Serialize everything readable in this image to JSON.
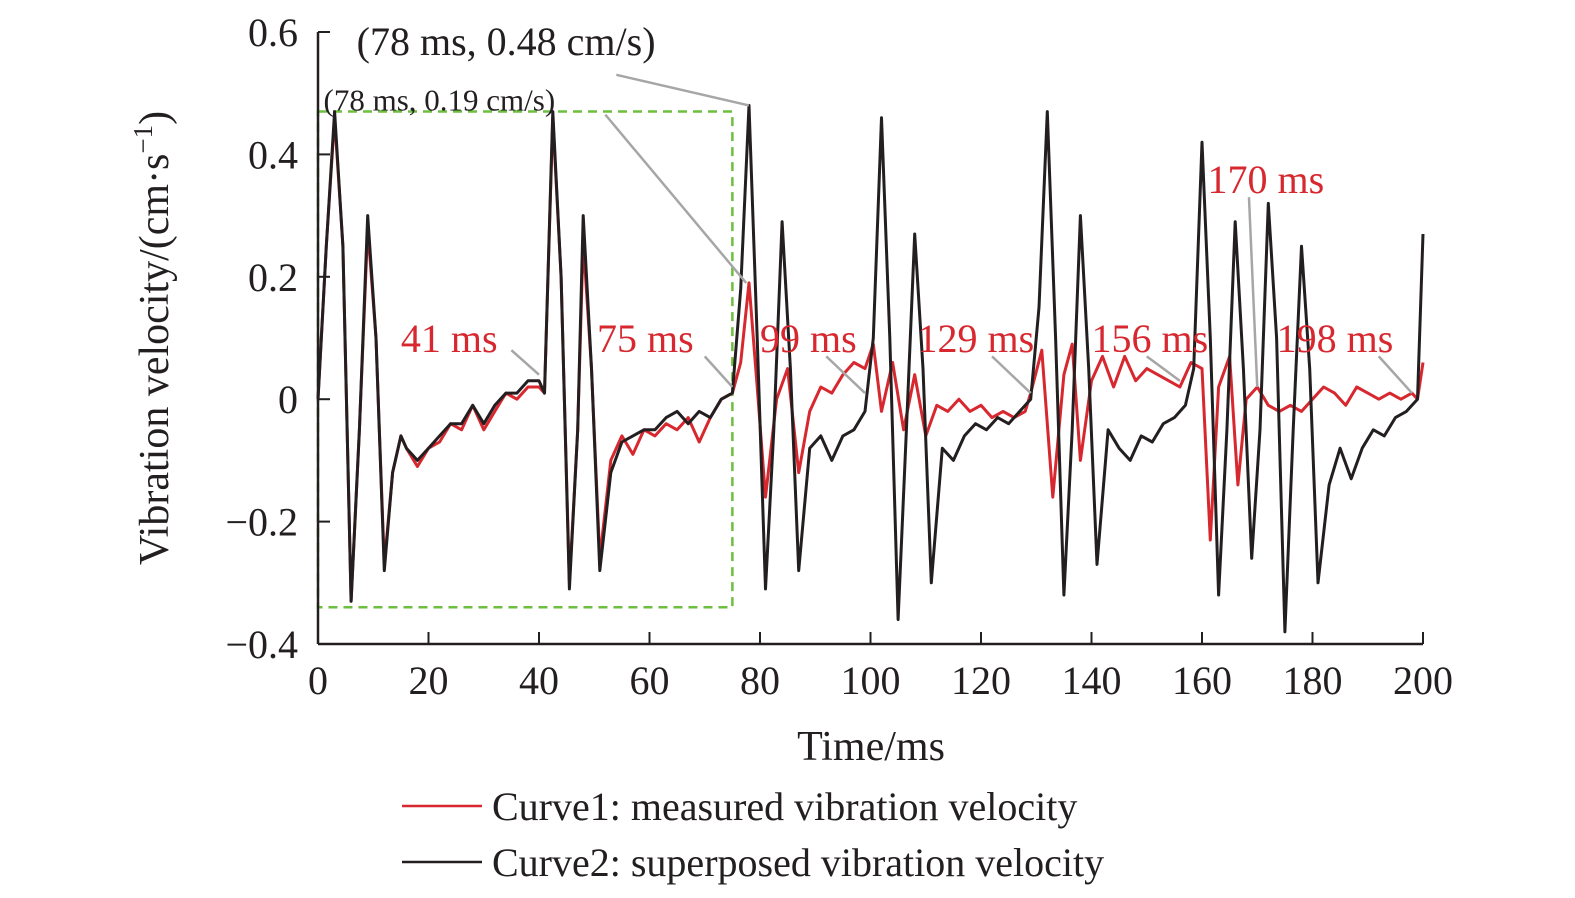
{
  "chart_data": {
    "type": "line",
    "xlabel": "Time/ms",
    "ylabel": "Vibration velocity/(cm·s",
    "ylabel_sup": "−1",
    "ylabel_close": ")",
    "xlim": [
      0,
      200
    ],
    "ylim": [
      -0.4,
      0.6
    ],
    "xticks": [
      "0",
      "20",
      "40",
      "60",
      "80",
      "100",
      "120",
      "140",
      "160",
      "180",
      "200"
    ],
    "yticks": [
      "−0.4",
      "−0.2",
      "0",
      "0.2",
      "0.4",
      "0.6"
    ],
    "grid": false,
    "legend_position": "bottom",
    "series": [
      {
        "name": "Curve1: measured vibration velocity",
        "color": "#d7282f",
        "points": [
          [
            0,
            0
          ],
          [
            1.5,
            0.25
          ],
          [
            3,
            0.46
          ],
          [
            4.5,
            0.25
          ],
          [
            6,
            -0.33
          ],
          [
            7.5,
            -0.05
          ],
          [
            9,
            0.28
          ],
          [
            10.5,
            0.1
          ],
          [
            12,
            -0.27
          ],
          [
            13.5,
            -0.12
          ],
          [
            15,
            -0.06
          ],
          [
            16,
            -0.08
          ],
          [
            18,
            -0.11
          ],
          [
            20,
            -0.08
          ],
          [
            22,
            -0.07
          ],
          [
            24,
            -0.04
          ],
          [
            26,
            -0.05
          ],
          [
            28,
            -0.01
          ],
          [
            30,
            -0.05
          ],
          [
            32,
            -0.02
          ],
          [
            34,
            0.01
          ],
          [
            36,
            0.0
          ],
          [
            38,
            0.02
          ],
          [
            40,
            0.02
          ],
          [
            41,
            0.01
          ],
          [
            42.5,
            0.46
          ],
          [
            44,
            0.2
          ],
          [
            45.5,
            -0.3
          ],
          [
            47,
            -0.05
          ],
          [
            48,
            0.26
          ],
          [
            49.5,
            0.05
          ],
          [
            51,
            -0.26
          ],
          [
            53,
            -0.1
          ],
          [
            55,
            -0.06
          ],
          [
            57,
            -0.09
          ],
          [
            59,
            -0.05
          ],
          [
            61,
            -0.06
          ],
          [
            63,
            -0.04
          ],
          [
            65,
            -0.05
          ],
          [
            67,
            -0.03
          ],
          [
            69,
            -0.07
          ],
          [
            71,
            -0.03
          ],
          [
            73,
            0.0
          ],
          [
            75,
            0.01
          ],
          [
            76.5,
            0.06
          ],
          [
            78,
            0.19
          ],
          [
            79.5,
            0.02
          ],
          [
            81,
            -0.16
          ],
          [
            83,
            0.0
          ],
          [
            85,
            0.05
          ],
          [
            87,
            -0.12
          ],
          [
            89,
            -0.02
          ],
          [
            91,
            0.02
          ],
          [
            93,
            0.01
          ],
          [
            95,
            0.04
          ],
          [
            97,
            0.06
          ],
          [
            99,
            0.05
          ],
          [
            100.5,
            0.09
          ],
          [
            102,
            -0.02
          ],
          [
            104,
            0.06
          ],
          [
            106,
            -0.05
          ],
          [
            108,
            0.04
          ],
          [
            110,
            -0.06
          ],
          [
            112,
            -0.01
          ],
          [
            114,
            -0.02
          ],
          [
            116,
            0.0
          ],
          [
            118,
            -0.02
          ],
          [
            120,
            -0.01
          ],
          [
            122,
            -0.03
          ],
          [
            124,
            -0.02
          ],
          [
            126,
            -0.03
          ],
          [
            128,
            -0.02
          ],
          [
            129,
            0.01
          ],
          [
            131,
            0.08
          ],
          [
            133,
            -0.16
          ],
          [
            135,
            0.04
          ],
          [
            136.5,
            0.09
          ],
          [
            138,
            -0.1
          ],
          [
            140,
            0.03
          ],
          [
            142,
            0.07
          ],
          [
            144,
            0.02
          ],
          [
            146,
            0.07
          ],
          [
            148,
            0.03
          ],
          [
            150,
            0.05
          ],
          [
            152,
            0.04
          ],
          [
            154,
            0.03
          ],
          [
            156,
            0.02
          ],
          [
            158,
            0.06
          ],
          [
            160,
            0.05
          ],
          [
            161.5,
            -0.23
          ],
          [
            163,
            0.02
          ],
          [
            165,
            0.07
          ],
          [
            166.5,
            -0.14
          ],
          [
            168,
            0.0
          ],
          [
            170,
            0.02
          ],
          [
            172,
            -0.01
          ],
          [
            174,
            -0.02
          ],
          [
            176,
            -0.01
          ],
          [
            178,
            -0.02
          ],
          [
            180,
            0.0
          ],
          [
            182,
            0.02
          ],
          [
            184,
            0.01
          ],
          [
            186,
            -0.01
          ],
          [
            188,
            0.02
          ],
          [
            190,
            0.01
          ],
          [
            192,
            0.0
          ],
          [
            194,
            0.01
          ],
          [
            196,
            0.0
          ],
          [
            198,
            0.01
          ],
          [
            199,
            0.0
          ],
          [
            200,
            0.06
          ]
        ]
      },
      {
        "name": "Curve2: superposed vibration velocity",
        "color": "#231f20",
        "points": [
          [
            0,
            0
          ],
          [
            1.5,
            0.25
          ],
          [
            3,
            0.47
          ],
          [
            4.5,
            0.25
          ],
          [
            6,
            -0.33
          ],
          [
            7.5,
            -0.05
          ],
          [
            9,
            0.3
          ],
          [
            10.5,
            0.1
          ],
          [
            12,
            -0.28
          ],
          [
            13.5,
            -0.12
          ],
          [
            15,
            -0.06
          ],
          [
            16,
            -0.08
          ],
          [
            18,
            -0.1
          ],
          [
            20,
            -0.08
          ],
          [
            22,
            -0.06
          ],
          [
            24,
            -0.04
          ],
          [
            26,
            -0.04
          ],
          [
            28,
            -0.01
          ],
          [
            30,
            -0.04
          ],
          [
            32,
            -0.01
          ],
          [
            34,
            0.01
          ],
          [
            36,
            0.01
          ],
          [
            38,
            0.03
          ],
          [
            40,
            0.03
          ],
          [
            41,
            0.01
          ],
          [
            42.5,
            0.47
          ],
          [
            44,
            0.2
          ],
          [
            45.5,
            -0.31
          ],
          [
            47,
            -0.05
          ],
          [
            48,
            0.3
          ],
          [
            49.5,
            0.05
          ],
          [
            51,
            -0.28
          ],
          [
            53,
            -0.12
          ],
          [
            55,
            -0.07
          ],
          [
            57,
            -0.06
          ],
          [
            59,
            -0.05
          ],
          [
            61,
            -0.05
          ],
          [
            63,
            -0.03
          ],
          [
            65,
            -0.02
          ],
          [
            67,
            -0.04
          ],
          [
            69,
            -0.02
          ],
          [
            71,
            -0.03
          ],
          [
            73,
            0.0
          ],
          [
            75,
            0.01
          ],
          [
            76.5,
            0.18
          ],
          [
            78,
            0.48
          ],
          [
            79.5,
            0.1
          ],
          [
            81,
            -0.31
          ],
          [
            82.5,
            -0.05
          ],
          [
            84,
            0.29
          ],
          [
            85.5,
            0.05
          ],
          [
            87,
            -0.28
          ],
          [
            89,
            -0.08
          ],
          [
            91,
            -0.06
          ],
          [
            93,
            -0.1
          ],
          [
            95,
            -0.06
          ],
          [
            97,
            -0.05
          ],
          [
            99,
            -0.02
          ],
          [
            100.5,
            0.1
          ],
          [
            102,
            0.46
          ],
          [
            103.5,
            0.1
          ],
          [
            105,
            -0.36
          ],
          [
            106.5,
            -0.05
          ],
          [
            108,
            0.27
          ],
          [
            109.5,
            0.05
          ],
          [
            111,
            -0.3
          ],
          [
            113,
            -0.08
          ],
          [
            115,
            -0.1
          ],
          [
            117,
            -0.06
          ],
          [
            119,
            -0.04
          ],
          [
            121,
            -0.05
          ],
          [
            123,
            -0.03
          ],
          [
            125,
            -0.04
          ],
          [
            127,
            -0.02
          ],
          [
            129,
            0.0
          ],
          [
            130.5,
            0.15
          ],
          [
            132,
            0.47
          ],
          [
            133.5,
            0.1
          ],
          [
            135,
            -0.32
          ],
          [
            136.5,
            -0.05
          ],
          [
            138,
            0.3
          ],
          [
            139.5,
            0.05
          ],
          [
            141,
            -0.27
          ],
          [
            143,
            -0.05
          ],
          [
            145,
            -0.08
          ],
          [
            147,
            -0.1
          ],
          [
            149,
            -0.06
          ],
          [
            151,
            -0.07
          ],
          [
            153,
            -0.04
          ],
          [
            155,
            -0.03
          ],
          [
            157,
            -0.01
          ],
          [
            158.5,
            0.05
          ],
          [
            160,
            0.42
          ],
          [
            161.5,
            0.1
          ],
          [
            163,
            -0.32
          ],
          [
            164.5,
            -0.05
          ],
          [
            166,
            0.29
          ],
          [
            167.5,
            0.05
          ],
          [
            169,
            -0.26
          ],
          [
            170.5,
            -0.05
          ],
          [
            172,
            0.32
          ],
          [
            173.5,
            0.1
          ],
          [
            175,
            -0.38
          ],
          [
            176.5,
            -0.05
          ],
          [
            178,
            0.25
          ],
          [
            179.5,
            0.05
          ],
          [
            181,
            -0.3
          ],
          [
            183,
            -0.14
          ],
          [
            185,
            -0.08
          ],
          [
            187,
            -0.13
          ],
          [
            189,
            -0.08
          ],
          [
            191,
            -0.05
          ],
          [
            193,
            -0.06
          ],
          [
            195,
            -0.03
          ],
          [
            197,
            -0.02
          ],
          [
            199,
            0.0
          ],
          [
            200,
            0.27
          ]
        ]
      }
    ],
    "annotations": [
      {
        "text": "(78 ms, 0.48 cm/s)",
        "style": "black",
        "lx": 7,
        "ly": 0.585,
        "tx": 78,
        "ty": 0.48,
        "lineFrom": [
          54,
          0.53
        ]
      },
      {
        "text": "(78 ms, 0.19 cm/s)",
        "style": "small",
        "lx": 1,
        "ly": 0.495,
        "tx": 77.5,
        "ty": 0.19,
        "lineFrom": [
          52,
          0.465
        ]
      },
      {
        "text": "41 ms",
        "style": "red",
        "lx": 15,
        "ly": 0.1,
        "tx": 40,
        "ty": 0.04,
        "lineFrom": [
          35,
          0.08
        ]
      },
      {
        "text": "75 ms",
        "style": "red",
        "lx": 50.5,
        "ly": 0.1,
        "tx": 75,
        "ty": 0.02,
        "lineFrom": [
          70,
          0.07
        ]
      },
      {
        "text": "99 ms",
        "style": "red",
        "lx": 80,
        "ly": 0.1,
        "tx": 99,
        "ty": 0.01,
        "lineFrom": [
          92,
          0.07
        ]
      },
      {
        "text": "129 ms",
        "style": "red",
        "lx": 108.5,
        "ly": 0.1,
        "tx": 129,
        "ty": 0.01,
        "lineFrom": [
          122,
          0.07
        ]
      },
      {
        "text": "156 ms",
        "style": "red",
        "lx": 140,
        "ly": 0.1,
        "tx": 156,
        "ty": 0.03,
        "lineFrom": [
          150,
          0.07
        ]
      },
      {
        "text": "170 ms",
        "style": "red",
        "lx": 161,
        "ly": 0.36,
        "tx": 170,
        "ty": 0.02,
        "lineFrom": [
          168.5,
          0.33
        ]
      },
      {
        "text": "198 ms",
        "style": "red",
        "lx": 173.5,
        "ly": 0.1,
        "tx": 198,
        "ty": 0.01,
        "lineFrom": [
          192,
          0.07
        ]
      }
    ],
    "highlight_box": {
      "x0": 0,
      "x1": 75,
      "y0": -0.34,
      "y1": 0.47,
      "color": "#6cbf3f"
    }
  }
}
